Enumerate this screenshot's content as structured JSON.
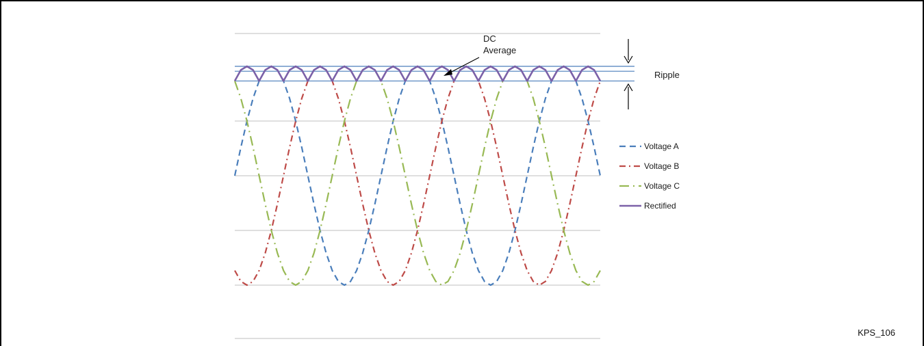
{
  "figure_id": "KPS_106",
  "annotations": {
    "dc_line1": "DC",
    "dc_line2": "Average",
    "ripple": "Ripple"
  },
  "chart_data": {
    "type": "line",
    "title": "",
    "xlabel": "",
    "ylabel": "",
    "x": [
      0,
      15,
      30,
      45,
      60,
      75,
      90,
      105,
      120,
      135,
      150,
      165,
      180,
      195,
      210,
      225,
      240,
      255,
      270,
      285,
      300,
      315,
      330,
      345,
      360,
      375,
      390,
      405,
      420,
      435,
      450,
      465,
      480,
      495,
      510,
      525,
      540,
      555,
      570,
      585,
      600,
      615,
      630,
      645,
      660,
      675,
      690,
      705,
      720,
      735,
      750,
      765,
      780,
      795,
      810,
      825,
      840,
      855,
      870,
      885,
      900
    ],
    "xlim": [
      0,
      900
    ],
    "ylim": [
      -1.2,
      1.3
    ],
    "series": [
      {
        "name": "Voltage A",
        "color": "#4a7ebb",
        "dash": "dash",
        "values": [
          0,
          0.259,
          0.5,
          0.707,
          0.866,
          0.966,
          1,
          0.966,
          0.866,
          0.707,
          0.5,
          0.259,
          0,
          -0.259,
          -0.5,
          -0.707,
          -0.866,
          -0.966,
          -1,
          -0.966,
          -0.866,
          -0.707,
          -0.5,
          -0.259,
          0,
          0.259,
          0.5,
          0.707,
          0.866,
          0.966,
          1,
          0.966,
          0.866,
          0.707,
          0.5,
          0.259,
          0,
          -0.259,
          -0.5,
          -0.707,
          -0.866,
          -0.966,
          -1,
          -0.966,
          -0.866,
          -0.707,
          -0.5,
          -0.259,
          0,
          0.259,
          0.5,
          0.707,
          0.866,
          0.966,
          1,
          0.966,
          0.866,
          0.707,
          0.5,
          0.259,
          0
        ]
      },
      {
        "name": "Voltage B",
        "color": "#be4b48",
        "dash": "dashdot",
        "values": [
          -0.866,
          -0.966,
          -1,
          -0.966,
          -0.866,
          -0.707,
          -0.5,
          -0.259,
          0,
          0.259,
          0.5,
          0.707,
          0.866,
          0.966,
          1,
          0.966,
          0.866,
          0.707,
          0.5,
          0.259,
          0,
          -0.259,
          -0.5,
          -0.707,
          -0.866,
          -0.966,
          -1,
          -0.966,
          -0.866,
          -0.707,
          -0.5,
          -0.259,
          0,
          0.259,
          0.5,
          0.707,
          0.866,
          0.966,
          1,
          0.966,
          0.866,
          0.707,
          0.5,
          0.259,
          0,
          -0.259,
          -0.5,
          -0.707,
          -0.866,
          -0.966,
          -1,
          -0.966,
          -0.866,
          -0.707,
          -0.5,
          -0.259,
          0,
          0.259,
          0.5,
          0.707,
          0.866
        ]
      },
      {
        "name": "Voltage C",
        "color": "#98b954",
        "dash": "longdashdot",
        "values": [
          0.866,
          0.707,
          0.5,
          0.259,
          0,
          -0.259,
          -0.5,
          -0.707,
          -0.866,
          -0.966,
          -1,
          -0.966,
          -0.866,
          -0.707,
          -0.5,
          -0.259,
          0,
          0.259,
          0.5,
          0.707,
          0.866,
          0.966,
          1,
          0.966,
          0.866,
          0.707,
          0.5,
          0.259,
          0,
          -0.259,
          -0.5,
          -0.707,
          -0.866,
          -0.966,
          -1,
          -0.966,
          -0.866,
          -0.707,
          -0.5,
          -0.259,
          0,
          0.259,
          0.5,
          0.707,
          0.866,
          0.966,
          1,
          0.966,
          0.866,
          0.707,
          0.5,
          0.259,
          0,
          -0.259,
          -0.5,
          -0.707,
          -0.866,
          -0.966,
          -1,
          -0.966,
          -0.866
        ]
      },
      {
        "name": "Rectified",
        "color": "#7b61a8",
        "dash": "solid",
        "values": [
          0.866,
          0.966,
          1,
          0.966,
          0.866,
          0.966,
          1,
          0.966,
          0.866,
          0.966,
          1,
          0.966,
          0.866,
          0.966,
          1,
          0.966,
          0.866,
          0.966,
          1,
          0.966,
          0.866,
          0.966,
          1,
          0.966,
          0.866,
          0.966,
          1,
          0.966,
          0.866,
          0.966,
          1,
          0.966,
          0.866,
          0.966,
          1,
          0.966,
          0.866,
          0.966,
          1,
          0.966,
          0.866,
          0.966,
          1,
          0.966,
          0.866,
          0.966,
          1,
          0.966,
          0.866,
          0.966,
          1,
          0.966,
          0.866,
          0.966,
          1,
          0.966,
          0.866,
          0.966,
          1,
          0.966,
          0.866
        ]
      }
    ],
    "reference_lines": [
      {
        "y": 1.0,
        "color": "#4a7ebb"
      },
      {
        "y": 0.955,
        "color": "#4a7ebb"
      },
      {
        "y": 0.866,
        "color": "#4a7ebb"
      }
    ],
    "gridlines_y": [
      1.3,
      0.5,
      0,
      -0.5,
      -1,
      -1.5
    ],
    "grid": true,
    "legend_position": "right",
    "colors": {
      "grid": "#bfbfbf",
      "arrows": "#000000"
    }
  }
}
